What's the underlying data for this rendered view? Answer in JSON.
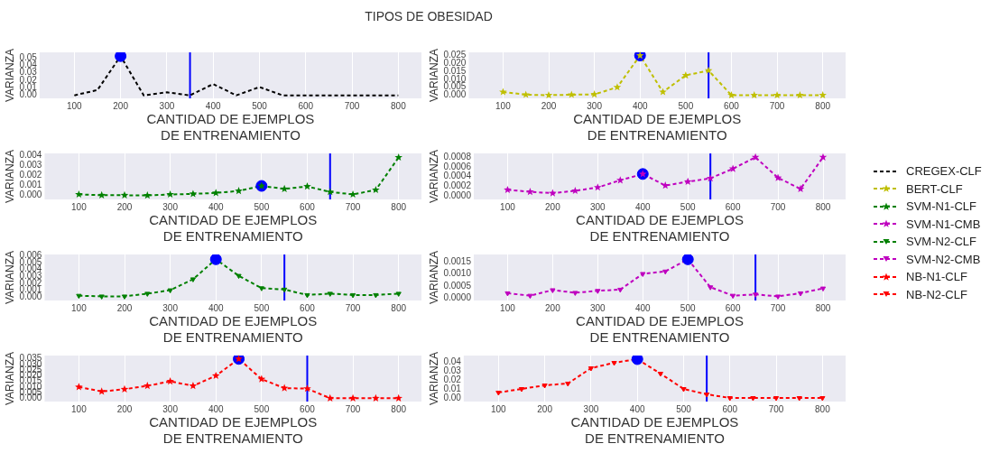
{
  "chart_data": [
    {
      "type": "line",
      "title": "TIPOS DE OBESIDAD",
      "xlabel": "CANTIDAD DE EJEMPLOS\nDE ENTRENAMIENTO",
      "ylabel": "VARIANZA",
      "x": [
        100,
        150,
        200,
        250,
        300,
        350,
        400,
        450,
        500,
        550,
        600,
        650,
        700,
        750,
        800
      ],
      "xlim": [
        25,
        850
      ],
      "xticks": [
        100,
        200,
        300,
        400,
        500,
        600,
        700,
        800
      ],
      "ylim": [
        -0.004,
        0.057
      ],
      "yticks": [
        {
          "value": 0,
          "label": "0.00"
        },
        0.01,
        0.02,
        0.03,
        0.04,
        0.05
      ],
      "grid": "x",
      "legend": "right",
      "line_style": "dashed",
      "marker": "none",
      "series": [
        {
          "name": "CREGEX-CLF",
          "color": "#000000",
          "values": [
            0.0,
            0.007,
            0.052,
            0.0,
            0.004,
            0.0,
            0.015,
            0.0,
            0.011,
            0.0,
            0.0,
            0.0,
            0.0,
            0.0,
            0.0
          ]
        },
        {
          "type": "scatter",
          "color": "#0000ff",
          "marker": "circle",
          "x": [
            200
          ],
          "values": [
            0.052
          ]
        }
      ],
      "ref_lines": [
        {
          "axis": "x",
          "value": 350,
          "color": "#0000ff"
        }
      ]
    },
    {
      "type": "line",
      "xlabel": "CANTIDAD DE EJEMPLOS\nDE ENTRENAMIENTO",
      "ylabel": "VARIANZA",
      "x": [
        100,
        150,
        200,
        250,
        300,
        350,
        400,
        450,
        500,
        550,
        600,
        650,
        700,
        750,
        800
      ],
      "xlim": [
        25,
        850
      ],
      "xticks": [
        100,
        200,
        300,
        400,
        500,
        600,
        700,
        800
      ],
      "ylim": [
        -0.002,
        0.027
      ],
      "yticks": [
        {
          "value": 0,
          "label": "0.000"
        },
        {
          "value": 0.005,
          "label": "0.005"
        },
        {
          "value": 0.01,
          "label": "0.010"
        },
        {
          "value": 0.015,
          "label": "0.015"
        },
        {
          "value": 0.02,
          "label": "0.020"
        },
        {
          "value": 0.025,
          "label": "0.025"
        }
      ],
      "grid": "x",
      "legend": "right",
      "line_style": "dashed",
      "marker": "star",
      "series": [
        {
          "name": "BERT-CLF",
          "color": "#bfbf00",
          "values": [
            0.002,
            0.0003,
            0.0,
            0.0003,
            0.0005,
            0.005,
            0.025,
            0.002,
            0.0125,
            0.0155,
            0.0,
            0.0,
            0.0,
            0.0,
            0.0
          ]
        },
        {
          "type": "scatter",
          "color": "#0000ff",
          "marker": "circle",
          "x": [
            400
          ],
          "values": [
            0.025
          ]
        }
      ],
      "ref_lines": [
        {
          "axis": "x",
          "value": 550,
          "color": "#0000ff"
        }
      ]
    },
    {
      "type": "line",
      "xlabel": "CANTIDAD DE EJEMPLOS\nDE ENTRENAMIENTO",
      "ylabel": "VARIANZA",
      "x": [
        100,
        150,
        200,
        250,
        300,
        350,
        400,
        450,
        500,
        550,
        600,
        650,
        700,
        750,
        800
      ],
      "xlim": [
        25,
        850
      ],
      "xticks": [
        100,
        200,
        300,
        400,
        500,
        600,
        700,
        800
      ],
      "ylim": [
        -0.0004,
        0.0042
      ],
      "yticks": [
        {
          "value": 0,
          "label": "0.000"
        },
        0.001,
        0.002,
        0.003,
        0.004
      ],
      "grid": "x",
      "legend": "right",
      "line_style": "dashed",
      "marker": "star",
      "series": [
        {
          "name": "SVM-N1-CLF",
          "color": "#008000",
          "values": [
            0.0001,
            2e-05,
            2e-05,
            0.0,
            0.0001,
            0.00015,
            0.00025,
            0.00045,
            0.00095,
            0.00065,
            0.0009,
            0.00035,
            0.0001,
            0.00055,
            0.0038
          ]
        },
        {
          "type": "scatter",
          "color": "#0000ff",
          "marker": "circle",
          "x": [
            500
          ],
          "values": [
            0.00095
          ]
        }
      ],
      "ref_lines": [
        {
          "axis": "x",
          "value": 650,
          "color": "#0000ff"
        }
      ]
    },
    {
      "type": "line",
      "xlabel": "CANTIDAD DE EJEMPLOS\nDE ENTRENAMIENTO",
      "ylabel": "VARIANZA",
      "x": [
        100,
        150,
        200,
        250,
        300,
        350,
        400,
        450,
        500,
        550,
        600,
        650,
        700,
        750,
        800
      ],
      "xlim": [
        25,
        850
      ],
      "xticks": [
        100,
        200,
        300,
        400,
        500,
        600,
        700,
        800
      ],
      "ylim": [
        -8e-05,
        0.00088
      ],
      "yticks": [
        {
          "value": 0,
          "label": "0.0000"
        },
        0.0002,
        0.0004,
        0.0006,
        0.0008
      ],
      "grid": "x",
      "legend": "right",
      "line_style": "dashed",
      "marker": "star",
      "series": [
        {
          "name": "SVM-N1-CMB",
          "color": "#bf00bf",
          "values": [
            0.00012,
            8e-05,
            5e-05,
            0.0001,
            0.00017,
            0.00032,
            0.00045,
            0.00021,
            0.00029,
            0.00036,
            0.00056,
            0.0008,
            0.00037,
            0.00014,
            0.0008
          ]
        },
        {
          "type": "scatter",
          "color": "#0000ff",
          "marker": "circle",
          "x": [
            400
          ],
          "values": [
            0.00045
          ]
        }
      ],
      "ref_lines": [
        {
          "axis": "x",
          "value": 550,
          "color": "#0000ff"
        }
      ]
    },
    {
      "type": "line",
      "xlabel": "CANTIDAD DE EJEMPLOS\nDE ENTRENAMIENTO",
      "ylabel": "VARIANZA",
      "x": [
        100,
        150,
        200,
        250,
        300,
        350,
        400,
        450,
        500,
        550,
        600,
        650,
        700,
        750,
        800
      ],
      "xlim": [
        25,
        850
      ],
      "xticks": [
        100,
        200,
        300,
        400,
        500,
        600,
        700,
        800
      ],
      "ylim": [
        -0.0005,
        0.0062
      ],
      "yticks": [
        {
          "value": 0,
          "label": "0.000"
        },
        0.001,
        0.002,
        0.003,
        0.004,
        0.005,
        0.006
      ],
      "grid": "x",
      "legend": "right",
      "line_style": "dashed",
      "marker": "triangle",
      "series": [
        {
          "name": "SVM-N2-CLF",
          "color": "#008000",
          "values": [
            0.0002,
            0.0001,
            0.0001,
            0.0005,
            0.001,
            0.0026,
            0.0055,
            0.0031,
            0.0013,
            0.0011,
            0.0003,
            0.0005,
            0.0003,
            0.0003,
            0.0005
          ]
        },
        {
          "type": "scatter",
          "color": "#0000ff",
          "marker": "circle",
          "x": [
            400
          ],
          "values": [
            0.0055
          ]
        }
      ],
      "ref_lines": [
        {
          "axis": "x",
          "value": 550,
          "color": "#0000ff"
        }
      ]
    },
    {
      "type": "line",
      "xlabel": "CANTIDAD DE EJEMPLOS\nDE ENTRENAMIENTO",
      "ylabel": "VARIANZA",
      "x": [
        100,
        150,
        200,
        250,
        300,
        350,
        400,
        450,
        500,
        550,
        600,
        650,
        700,
        750,
        800
      ],
      "xlim": [
        25,
        850
      ],
      "xticks": [
        100,
        200,
        300,
        400,
        500,
        600,
        700,
        800
      ],
      "ylim": [
        -0.0001,
        0.0018
      ],
      "yticks": [
        {
          "value": 0,
          "label": "0.0000"
        },
        {
          "value": 0.0005,
          "label": "0.0005"
        },
        {
          "value": 0.001,
          "label": "0.0010"
        },
        {
          "value": 0.0015,
          "label": "0.0015"
        }
      ],
      "grid": "x",
      "legend": "right",
      "line_style": "dashed",
      "marker": "triangle",
      "series": [
        {
          "name": "SVM-N2-CMB",
          "color": "#bf00bf",
          "values": [
            0.0002,
            0.0001,
            0.00033,
            0.00022,
            0.0003,
            0.00035,
            0.001,
            0.0011,
            0.0016,
            0.00045,
            0.0001,
            0.00015,
            7e-05,
            0.0002,
            0.0004
          ]
        },
        {
          "type": "scatter",
          "color": "#0000ff",
          "marker": "circle",
          "x": [
            500
          ],
          "values": [
            0.0016
          ]
        }
      ],
      "ref_lines": [
        {
          "axis": "x",
          "value": 650,
          "color": "#0000ff"
        }
      ]
    },
    {
      "type": "line",
      "xlabel": "CANTIDAD DE EJEMPLOS\nDE ENTRENAMIENTO",
      "ylabel": "VARIANZA",
      "x": [
        100,
        150,
        200,
        250,
        300,
        350,
        400,
        450,
        500,
        550,
        600,
        650,
        700,
        750,
        800
      ],
      "xlim": [
        25,
        850
      ],
      "xticks": [
        100,
        200,
        300,
        400,
        500,
        600,
        700,
        800
      ],
      "ylim": [
        -0.003,
        0.038
      ],
      "yticks": [
        {
          "value": 0,
          "label": "0.000"
        },
        {
          "value": 0.005,
          "label": "0.005"
        },
        {
          "value": 0.01,
          "label": "0.010"
        },
        {
          "value": 0.015,
          "label": "0.015"
        },
        {
          "value": 0.02,
          "label": "0.020"
        },
        {
          "value": 0.025,
          "label": "0.025"
        },
        {
          "value": 0.03,
          "label": "0.030"
        },
        {
          "value": 0.035,
          "label": "0.035"
        }
      ],
      "grid": "x",
      "legend": "right",
      "line_style": "dashed",
      "marker": "star",
      "series": [
        {
          "name": "NB-N1-CLF",
          "color": "#ff0000",
          "values": [
            0.01,
            0.006,
            0.008,
            0.011,
            0.015,
            0.011,
            0.02,
            0.035,
            0.017,
            0.009,
            0.0085,
            0.0,
            0.0,
            0.0,
            0.0
          ]
        },
        {
          "type": "scatter",
          "color": "#0000ff",
          "marker": "circle",
          "x": [
            450
          ],
          "values": [
            0.035
          ]
        }
      ],
      "ref_lines": [
        {
          "axis": "x",
          "value": 600,
          "color": "#0000ff"
        }
      ]
    },
    {
      "type": "line",
      "xlabel": "CANTIDAD DE EJEMPLOS\nDE ENTRENAMIENTO",
      "ylabel": "VARIANZA",
      "x": [
        100,
        150,
        200,
        250,
        300,
        350,
        400,
        450,
        500,
        550,
        600,
        650,
        700,
        750,
        800
      ],
      "xlim": [
        25,
        850
      ],
      "xticks": [
        100,
        200,
        300,
        400,
        500,
        600,
        700,
        800
      ],
      "ylim": [
        -0.004,
        0.047
      ],
      "yticks": [
        {
          "value": 0,
          "label": "0.00"
        },
        0.01,
        0.02,
        0.03,
        0.04
      ],
      "grid": "x",
      "legend": "right",
      "line_style": "dashed",
      "marker": "triangle",
      "series": [
        {
          "name": "NB-N2-CLF",
          "color": "#ff0000",
          "values": [
            0.006,
            0.01,
            0.014,
            0.016,
            0.033,
            0.039,
            0.043,
            0.027,
            0.01,
            0.004,
            0.0,
            0.0,
            0.0,
            0.0,
            0.0
          ]
        },
        {
          "type": "scatter",
          "color": "#0000ff",
          "marker": "circle",
          "x": [
            400
          ],
          "values": [
            0.043
          ]
        }
      ],
      "ref_lines": [
        {
          "axis": "x",
          "value": 550,
          "color": "#0000ff"
        }
      ]
    }
  ]
}
